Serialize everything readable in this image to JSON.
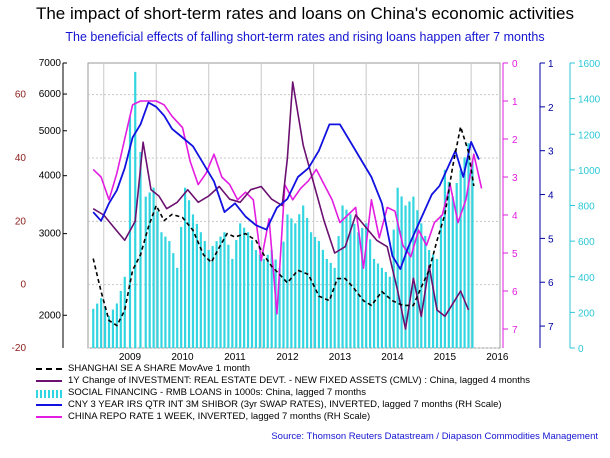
{
  "title": "The impact of short-term rates and loans on China's economic activities",
  "subtitle": "The beneficial effects of falling short-term rates and rising loans happen after 7 months",
  "source": "Source: Thomson Reuters Datastream / Diapason Commodities Management",
  "colors": {
    "shanghai": "#000000",
    "investment": "#6b1070",
    "social_financing": "#33d6e0",
    "shibor": "#1212e0",
    "repo": "#e21ce0",
    "grid": "#c8c8c8"
  },
  "chart_data": {
    "type": "line",
    "x_ticks": [
      "2009",
      "2010",
      "2011",
      "2012",
      "2013",
      "2014",
      "2015",
      "2016"
    ],
    "axes": {
      "left_outer": {
        "ticks": [
          "60",
          "40",
          "20",
          "0",
          "-20"
        ],
        "range": [
          -20,
          70
        ]
      },
      "left_inner": {
        "ticks": [
          "7000",
          "6000",
          "5000",
          "4000",
          "3000",
          "2000"
        ],
        "range": [
          1700,
          7000
        ],
        "scale": "log"
      },
      "right_repo": {
        "ticks": [
          "0",
          "1",
          "2",
          "3",
          "4",
          "5",
          "6",
          "7"
        ],
        "range": [
          0,
          7.5
        ],
        "inverted": true
      },
      "right_shibor": {
        "ticks": [
          "1",
          "2",
          "3",
          "4",
          "5",
          "6",
          "7"
        ],
        "range": [
          1,
          7.5
        ],
        "inverted": true
      },
      "right_loans": {
        "ticks": [
          "1600",
          "1400",
          "1200",
          "1000",
          "800",
          "600",
          "400",
          "200",
          "0"
        ],
        "range": [
          0,
          1600
        ]
      }
    },
    "series": [
      {
        "name": "SHANGHAI SE A SHARE MovAve 1 month",
        "axis": "left_inner",
        "x": [
          2008.3,
          2008.45,
          2008.6,
          2008.75,
          2008.9,
          2009.05,
          2009.2,
          2009.35,
          2009.5,
          2009.65,
          2009.8,
          2010.0,
          2010.2,
          2010.4,
          2010.55,
          2010.7,
          2010.85,
          2011.0,
          2011.2,
          2011.4,
          2011.55,
          2011.7,
          2011.85,
          2012.0,
          2012.2,
          2012.4,
          2012.6,
          2012.8,
          2012.95,
          2013.1,
          2013.25,
          2013.45,
          2013.6,
          2013.8,
          2014.0,
          2014.2,
          2014.4,
          2014.55,
          2014.7,
          2014.85,
          2015.0,
          2015.15,
          2015.3,
          2015.45,
          2015.55
        ],
        "values": [
          2650,
          2250,
          1950,
          1900,
          2050,
          2500,
          2700,
          3100,
          3450,
          3200,
          3300,
          3250,
          3050,
          2700,
          2600,
          2800,
          3000,
          2950,
          3000,
          2900,
          2700,
          2550,
          2450,
          2350,
          2500,
          2450,
          2200,
          2150,
          2400,
          2400,
          2300,
          2150,
          2100,
          2250,
          2150,
          2100,
          2100,
          2300,
          2500,
          2900,
          3300,
          4200,
          5100,
          4500,
          3800
        ]
      },
      {
        "name": "1Y Change of INVESTMENT: REAL ESTATE DEVT. - NEW FIXED ASSETS (CMLV) : China, lagged 4 months",
        "axis": "left_outer",
        "x": [
          2008.3,
          2008.5,
          2008.7,
          2008.9,
          2009.1,
          2009.25,
          2009.4,
          2009.55,
          2009.7,
          2009.9,
          2010.1,
          2010.3,
          2010.5,
          2010.7,
          2010.9,
          2011.1,
          2011.3,
          2011.5,
          2011.7,
          2011.9,
          2012.0,
          2012.1,
          2012.3,
          2012.5,
          2012.7,
          2012.9,
          2013.1,
          2013.3,
          2013.5,
          2013.7,
          2013.9,
          2014.1,
          2014.25,
          2014.4,
          2014.55,
          2014.7,
          2014.85,
          2015.0,
          2015.15,
          2015.3,
          2015.45
        ],
        "values": [
          24,
          22,
          18,
          14,
          20,
          45,
          30,
          28,
          24,
          26,
          30,
          26,
          28,
          31,
          27,
          26,
          30,
          31,
          27,
          25,
          40,
          64,
          44,
          32,
          20,
          10,
          12,
          22,
          18,
          14,
          12,
          -2,
          -14,
          2,
          -10,
          6,
          -8,
          -10,
          -6,
          -2,
          -8
        ]
      },
      {
        "name": "SOCIAL FINANCING - RMB LOANS in 1000s: China, lagged 7 months",
        "axis": "right_loans",
        "x": [
          2008.3,
          2008.45,
          2008.6,
          2008.75,
          2008.9,
          2009.0,
          2009.1,
          2009.2,
          2009.3,
          2009.45,
          2009.6,
          2009.75,
          2009.9,
          2010.05,
          2010.2,
          2010.35,
          2010.5,
          2010.65,
          2010.8,
          2010.95,
          2011.1,
          2011.25,
          2011.4,
          2011.55,
          2011.7,
          2011.85,
          2012.0,
          2012.15,
          2012.3,
          2012.45,
          2012.6,
          2012.75,
          2012.9,
          2013.05,
          2013.2,
          2013.35,
          2013.5,
          2013.65,
          2013.8,
          2013.95,
          2014.1,
          2014.25,
          2014.4,
          2014.55,
          2014.7,
          2014.85,
          2015.0,
          2015.15,
          2015.3,
          2015.45,
          2015.6
        ],
        "values": [
          220,
          280,
          180,
          250,
          400,
          1300,
          1550,
          1100,
          850,
          900,
          650,
          600,
          450,
          900,
          750,
          650,
          550,
          600,
          650,
          500,
          700,
          650,
          550,
          500,
          550,
          450,
          750,
          700,
          800,
          650,
          600,
          500,
          450,
          800,
          750,
          650,
          700,
          500,
          450,
          400,
          900,
          800,
          850,
          700,
          550,
          500,
          1000,
          850,
          1000,
          1150,
          950
        ]
      },
      {
        "name": "CNY 3 YEAR IRS QTR INT 3M SHIBOR (3yr SWAP RATES), INVERTED, lagged 7 months (RH Scale)",
        "axis": "right_shibor",
        "x": [
          2008.3,
          2008.45,
          2008.6,
          2008.75,
          2008.9,
          2009.05,
          2009.2,
          2009.35,
          2009.5,
          2009.65,
          2009.8,
          2010.0,
          2010.2,
          2010.4,
          2010.6,
          2010.8,
          2011.0,
          2011.2,
          2011.4,
          2011.6,
          2011.8,
          2012.0,
          2012.2,
          2012.4,
          2012.6,
          2012.8,
          2013.0,
          2013.2,
          2013.4,
          2013.6,
          2013.8,
          2014.0,
          2014.15,
          2014.3,
          2014.45,
          2014.6,
          2014.75,
          2014.9,
          2015.05,
          2015.2,
          2015.35,
          2015.5,
          2015.65
        ],
        "values": [
          4.4,
          4.6,
          4.2,
          3.9,
          3.4,
          2.7,
          2.4,
          1.9,
          2.0,
          2.2,
          2.5,
          2.7,
          2.9,
          3.3,
          3.7,
          4.4,
          4.2,
          4.5,
          4.7,
          4.8,
          4.3,
          4.1,
          3.6,
          3.4,
          3.0,
          2.4,
          2.4,
          2.8,
          3.2,
          3.6,
          4.2,
          5.4,
          5.7,
          5.2,
          4.8,
          4.4,
          4.0,
          3.8,
          3.4,
          3.0,
          3.6,
          2.8,
          3.2
        ]
      },
      {
        "name": "CHINA REPO RATE 1 WEEK, INVERTED, lagged 7 months  (RH Scale)",
        "axis": "right_repo",
        "x": [
          2008.3,
          2008.45,
          2008.6,
          2008.75,
          2008.9,
          2009.05,
          2009.2,
          2009.35,
          2009.5,
          2009.65,
          2009.8,
          2010.0,
          2010.15,
          2010.3,
          2010.45,
          2010.6,
          2010.75,
          2010.9,
          2011.05,
          2011.2,
          2011.35,
          2011.5,
          2011.65,
          2011.8,
          2011.95,
          2012.1,
          2012.25,
          2012.4,
          2012.55,
          2012.7,
          2012.85,
          2013.0,
          2013.15,
          2013.3,
          2013.45,
          2013.6,
          2013.75,
          2013.9,
          2014.05,
          2014.2,
          2014.35,
          2014.5,
          2014.65,
          2014.8,
          2014.95,
          2015.1,
          2015.25,
          2015.4,
          2015.55,
          2015.7
        ],
        "values": [
          2.8,
          3.0,
          3.6,
          2.9,
          2.0,
          1.1,
          1.0,
          1.0,
          1.0,
          1.1,
          1.4,
          1.7,
          2.6,
          3.2,
          2.9,
          2.4,
          3.0,
          3.2,
          3.6,
          3.4,
          3.6,
          5.2,
          4.1,
          6.6,
          3.2,
          3.6,
          3.3,
          3.1,
          2.8,
          3.2,
          3.6,
          4.2,
          4.0,
          3.8,
          5.4,
          3.6,
          4.6,
          3.8,
          3.9,
          4.8,
          5.1,
          4.4,
          4.8,
          4.2,
          4.0,
          3.2,
          4.2,
          3.6,
          2.4,
          3.3
        ]
      }
    ]
  }
}
